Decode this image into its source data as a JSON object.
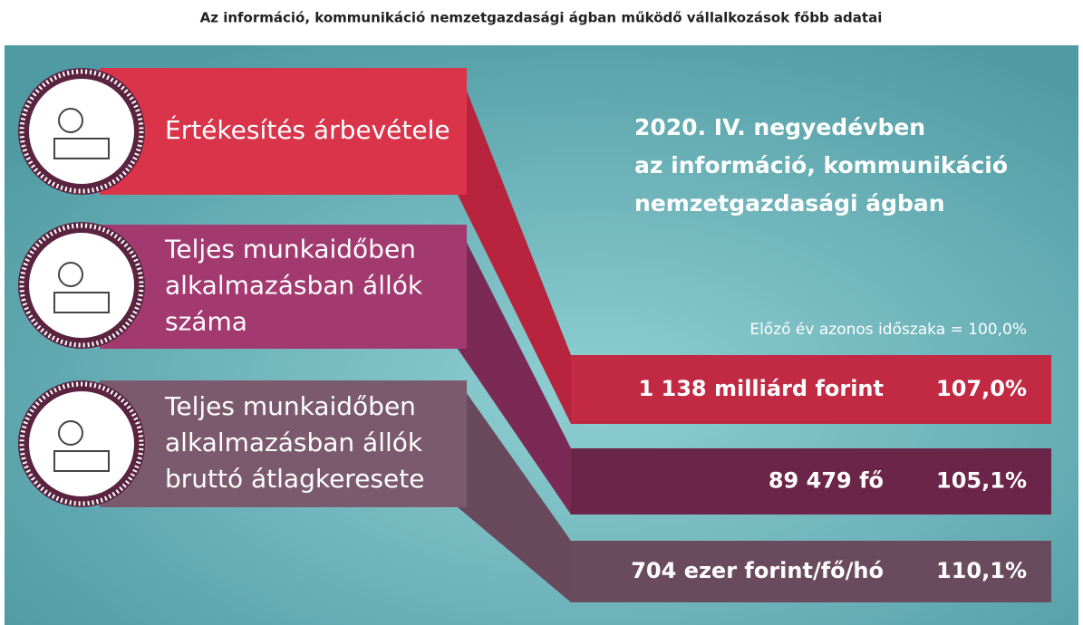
{
  "title": "Az információ, kommunikáció nemzetgazdasági ágban működő vállalkozások főbb adatai",
  "headline": [
    "2020. IV. negyedévben",
    "az információ, kommunikáció",
    "nemzetgazdasági ágban"
  ],
  "note": "Előző év azonos időszaka = 100,0%",
  "items": [
    {
      "label": [
        "Értékesítés árbevétele"
      ],
      "value": "1 138 milliárd forint",
      "percent": "107,0%"
    },
    {
      "label": [
        "Teljes munkaidőben",
        "alkalmazásban állók",
        "száma"
      ],
      "value": "89 479 fő",
      "percent": "105,1%"
    },
    {
      "label": [
        "Teljes munkaidőben",
        "alkalmazásban állók",
        "bruttó átlagkeresete"
      ],
      "value": "704 ezer forint/fő/hó",
      "percent": "110,1%"
    }
  ]
}
